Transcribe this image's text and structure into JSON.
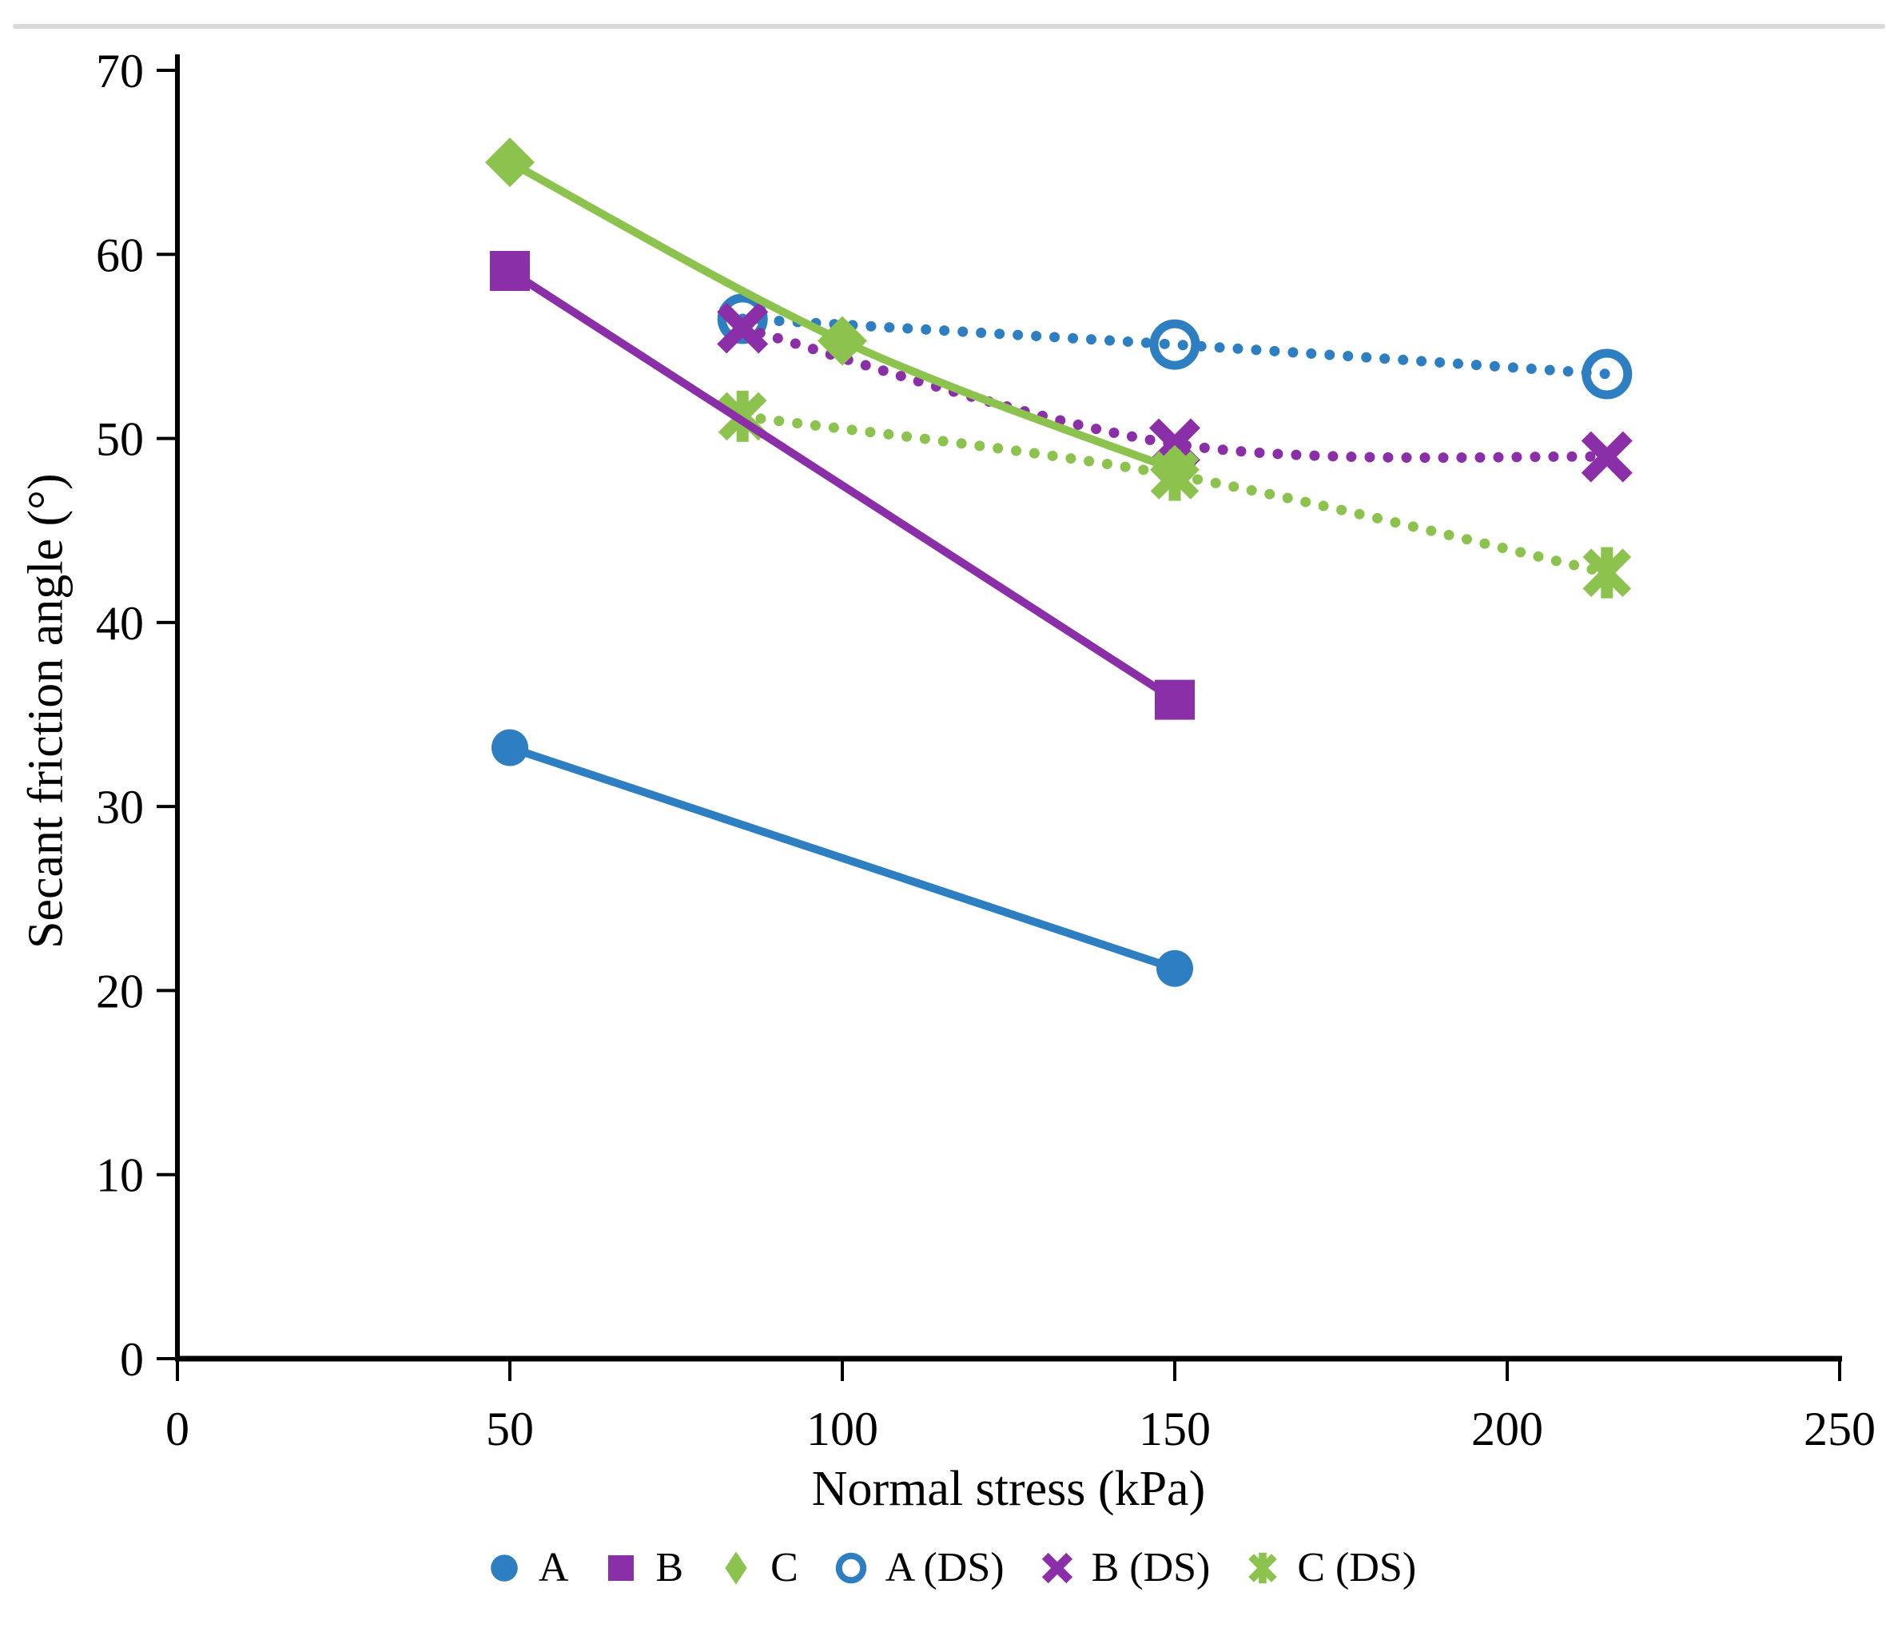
{
  "figure": {
    "background": "#ffffff",
    "top_border_color": "#d9d9d9",
    "axis_color": "#000000",
    "text_color": "#000000"
  },
  "chart_data": {
    "type": "line",
    "title": "",
    "xlabel": "Normal stress (kPa)",
    "ylabel": "Secant friction angle (°)",
    "xlim": [
      0,
      250
    ],
    "ylim": [
      0,
      70
    ],
    "xticks": [
      0,
      50,
      100,
      150,
      200,
      250
    ],
    "yticks": [
      0,
      10,
      20,
      30,
      40,
      50,
      60,
      70
    ],
    "grid": false,
    "legend_position": "bottom",
    "series": [
      {
        "name": "A",
        "color": "#2d7fc1",
        "marker": "circle",
        "line": "solid",
        "points": [
          [
            50,
            33.2
          ],
          [
            150,
            21.2
          ]
        ]
      },
      {
        "name": "B",
        "color": "#8b2fa8",
        "marker": "square",
        "line": "solid",
        "points": [
          [
            50,
            59.1
          ],
          [
            150,
            35.8
          ]
        ]
      },
      {
        "name": "C",
        "color": "#8cc24e",
        "marker": "diamond",
        "line": "solid",
        "points": [
          [
            50,
            65.0
          ],
          [
            100,
            55.3
          ],
          [
            150,
            48.3
          ]
        ]
      },
      {
        "name": "A (DS)",
        "color": "#2d7fc1",
        "marker": "open-circle",
        "line": "dotted",
        "points": [
          [
            85,
            56.5
          ],
          [
            150,
            55.1
          ],
          [
            215,
            53.5
          ]
        ]
      },
      {
        "name": "B (DS)",
        "color": "#8b2fa8",
        "marker": "x",
        "line": "dotted",
        "points": [
          [
            85,
            56.0
          ],
          [
            150,
            49.7
          ],
          [
            215,
            49.0
          ]
        ]
      },
      {
        "name": "C (DS)",
        "color": "#8cc24e",
        "marker": "asterisk",
        "line": "dotted",
        "points": [
          [
            85,
            51.2
          ],
          [
            150,
            48.0
          ],
          [
            215,
            42.7
          ]
        ]
      }
    ]
  }
}
